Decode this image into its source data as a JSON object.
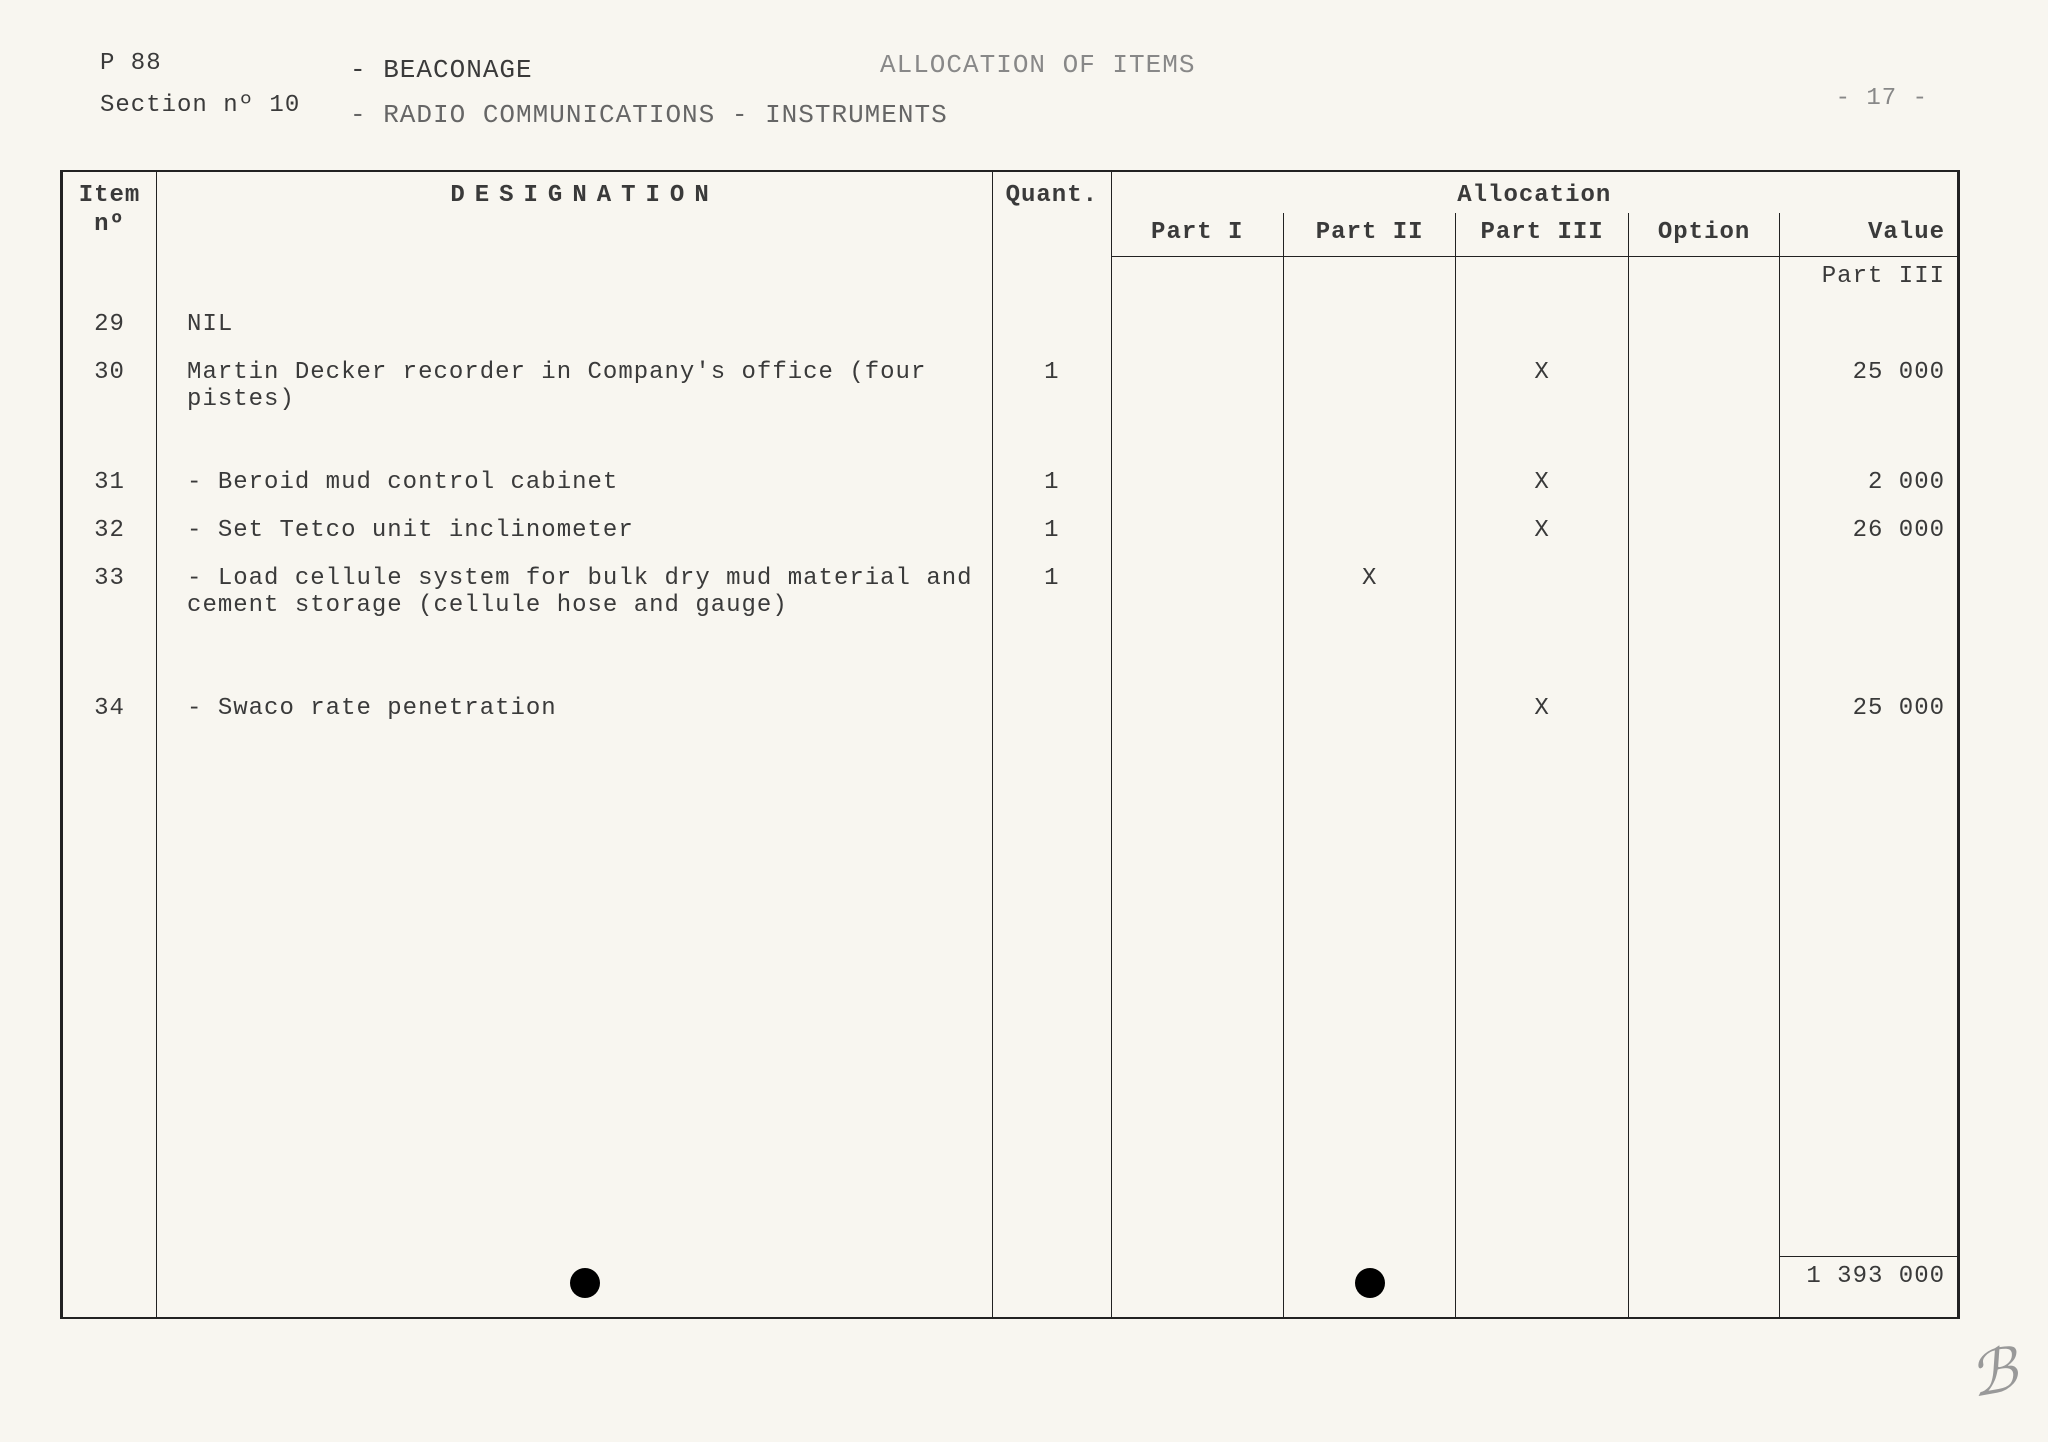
{
  "header": {
    "page_ref": "P 88",
    "title1": "- BEACONAGE",
    "center": "ALLOCATION OF ITEMS",
    "page_num": "- 17 -",
    "section": "Section nº 10",
    "title2": "- RADIO COMMUNICATIONS - INSTRUMENTS"
  },
  "columns": {
    "item_no": "Item nº",
    "designation": "DESIGNATION",
    "quant": "Quant.",
    "allocation": "Allocation",
    "part1": "Part I",
    "part2": "Part II",
    "part3": "Part III",
    "option": "Option",
    "value": "Value"
  },
  "value_header_note": "Part III",
  "rows": [
    {
      "no": "29",
      "desig": "NIL",
      "quant": "",
      "p1": "",
      "p2": "",
      "p3": "",
      "opt": "",
      "val": ""
    },
    {
      "no": "30",
      "desig": "Martin Decker recorder in Company's office (four pistes)",
      "quant": "1",
      "p1": "",
      "p2": "",
      "p3": "X",
      "opt": "",
      "val": "25 000"
    },
    {
      "no": "31",
      "desig": "- Beroid mud control cabinet",
      "quant": "1",
      "p1": "",
      "p2": "",
      "p3": "X",
      "opt": "",
      "val": "2 000"
    },
    {
      "no": "32",
      "desig": "- Set Tetco unit inclinometer",
      "quant": "1",
      "p1": "",
      "p2": "",
      "p3": "X",
      "opt": "",
      "val": "26 000"
    },
    {
      "no": "33",
      "desig": "- Load cellule system for bulk dry mud material and cement storage (cellule hose and gauge)",
      "quant": "1",
      "p1": "",
      "p2": "X",
      "p3": "",
      "opt": "",
      "val": ""
    },
    {
      "no": "34",
      "desig": "- Swaco rate penetration",
      "quant": "",
      "p1": "",
      "p2": "",
      "p3": "X",
      "opt": "",
      "val": "25 000"
    }
  ],
  "total": "1 393 000"
}
